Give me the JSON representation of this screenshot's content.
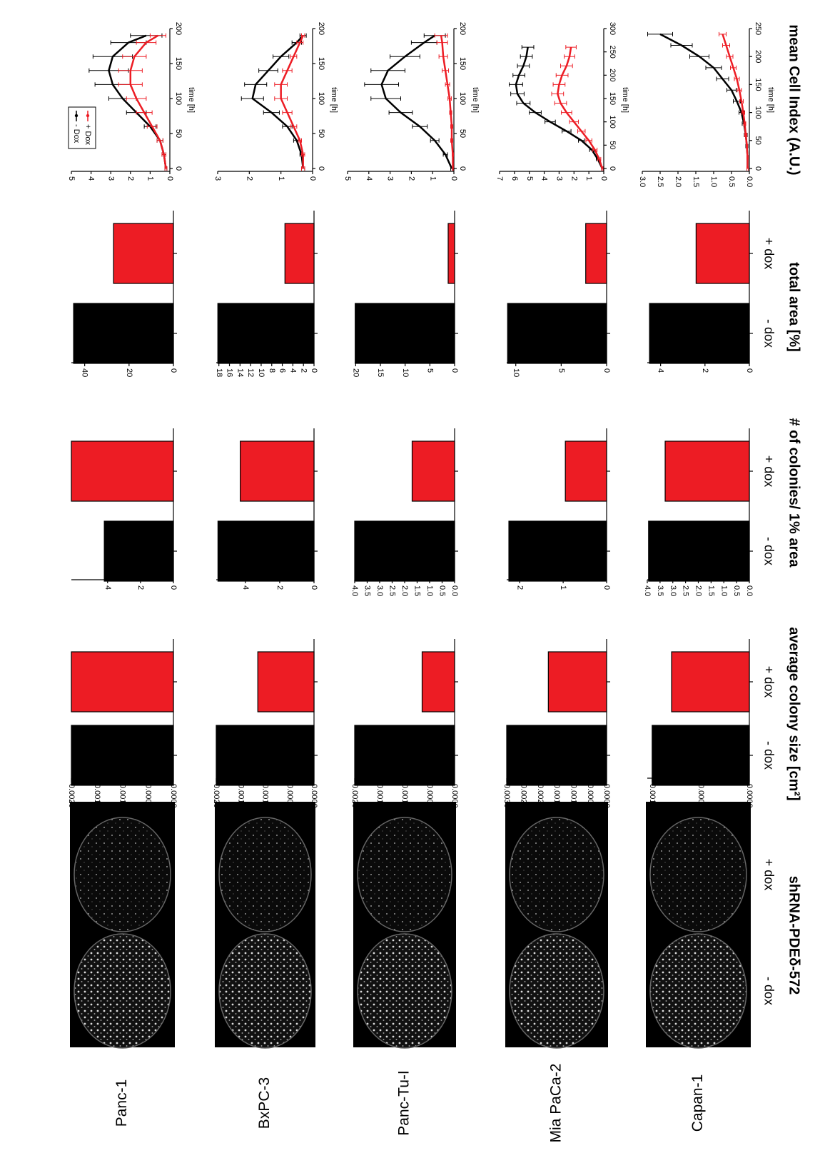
{
  "figure": {
    "images": {
      "title": "shRNA-PDEδ-572",
      "labels": [
        "- dox",
        "+ dox"
      ]
    },
    "columns": [
      {
        "title": "average colony size [cm²]",
        "categories": [
          "- dox",
          "+ dox"
        ]
      },
      {
        "title": "# of colonies/ 1% area",
        "categories": [
          "- dox",
          "+ dox"
        ]
      },
      {
        "title": "total area [%]",
        "categories": [
          "- dox",
          "+ dox"
        ]
      },
      {
        "title": "mean Cell Index (A.U.)"
      }
    ],
    "cell_lines": [
      "Panc-1",
      "BxPC-3",
      "Panc-Tu-I",
      "Mia PaCa-2",
      "Capan-1"
    ]
  },
  "chart_data": [
    {
      "type": "bar",
      "colors": [
        "#000000",
        "#ed1c24"
      ],
      "values": [
        0.002,
        0.002
      ],
      "ylim": [
        0,
        0.002
      ],
      "yticks": [
        {
          "value": 0,
          "label": "0.0000"
        },
        0.0005,
        {
          "value": 0.001,
          "label": "0.0010"
        },
        0.0015,
        {
          "value": 0.002,
          "label": "0.0020"
        }
      ]
    },
    {
      "type": "bar",
      "colors": [
        "#000000",
        "#ed1c24"
      ],
      "values": [
        4.2,
        6.2
      ],
      "ylim": [
        0,
        6.2
      ],
      "yticks": [
        0,
        2,
        4
      ]
    },
    {
      "type": "bar",
      "colors": [
        "#000000",
        "#ed1c24"
      ],
      "values": [
        45,
        27
      ],
      "ylim": [
        0,
        46
      ],
      "yticks": [
        0,
        20,
        40
      ]
    },
    {
      "type": "line",
      "xlabel": "time [h]",
      "xlim": [
        0,
        200
      ],
      "xticks": [
        0,
        50,
        100,
        150,
        200
      ],
      "ylim": [
        0,
        5
      ],
      "yticks": [
        0,
        1,
        2,
        3,
        4,
        5
      ],
      "legend": true,
      "x": [
        0,
        20,
        40,
        60,
        80,
        100,
        120,
        140,
        160,
        180,
        190
      ],
      "series": [
        {
          "name": "- Dox",
          "color": "#000000",
          "values": [
            0.2,
            0.3,
            0.5,
            1.0,
            1.7,
            2.4,
            2.9,
            3.1,
            2.9,
            2.1,
            1.2
          ],
          "errors": [
            0.05,
            0.1,
            0.15,
            0.3,
            0.5,
            0.7,
            0.9,
            1.0,
            1.0,
            0.9,
            0.8
          ]
        },
        {
          "name": "+ Dox",
          "color": "#ed1c24",
          "values": [
            0.2,
            0.3,
            0.5,
            0.9,
            1.3,
            1.7,
            2.0,
            2.0,
            1.8,
            1.2,
            0.6
          ],
          "errors": [
            0.05,
            0.1,
            0.15,
            0.25,
            0.4,
            0.5,
            0.6,
            0.6,
            0.6,
            0.5,
            0.4
          ]
        }
      ]
    },
    {
      "type": "bar",
      "colors": [
        "#000000",
        "#ed1c24"
      ],
      "values": [
        0.002,
        0.00115
      ],
      "ylim": [
        0,
        0.002
      ],
      "yticks": [
        {
          "value": 0,
          "label": "0.0000"
        },
        0.0005,
        {
          "value": 0.001,
          "label": "0.0010"
        },
        0.0015,
        {
          "value": 0.002,
          "label": "0.0020"
        }
      ]
    },
    {
      "type": "bar",
      "colors": [
        "#000000",
        "#ed1c24"
      ],
      "values": [
        5.6,
        4.3
      ],
      "ylim": [
        0,
        5.7
      ],
      "yticks": [
        0,
        2,
        4
      ]
    },
    {
      "type": "bar",
      "colors": [
        "#000000",
        "#ed1c24"
      ],
      "values": [
        18.2,
        5.5
      ],
      "ylim": [
        0,
        18.5
      ],
      "yticks": [
        0,
        2,
        4,
        6,
        8,
        10,
        12,
        14,
        16,
        18
      ]
    },
    {
      "type": "line",
      "xlabel": "time [h]",
      "xlim": [
        0,
        200
      ],
      "xticks": [
        0,
        50,
        100,
        150,
        200
      ],
      "ylim": [
        0,
        3
      ],
      "yticks": [
        0,
        1,
        2,
        3
      ],
      "x": [
        0,
        20,
        40,
        60,
        80,
        100,
        120,
        140,
        160,
        180,
        190
      ],
      "series": [
        {
          "color": "#000000",
          "values": [
            0.3,
            0.35,
            0.5,
            0.8,
            1.3,
            1.9,
            1.8,
            1.4,
            1.0,
            0.5,
            0.3
          ],
          "errors": [
            0.05,
            0.05,
            0.1,
            0.15,
            0.25,
            0.35,
            0.35,
            0.3,
            0.25,
            0.15,
            0.1
          ]
        },
        {
          "color": "#ed1c24",
          "values": [
            0.3,
            0.3,
            0.4,
            0.6,
            0.8,
            1.0,
            1.0,
            0.8,
            0.6,
            0.4,
            0.3
          ],
          "errors": [
            0.05,
            0.05,
            0.05,
            0.1,
            0.15,
            0.2,
            0.2,
            0.15,
            0.1,
            0.1,
            0.05
          ]
        }
      ]
    },
    {
      "type": "bar",
      "colors": [
        "#000000",
        "#ed1c24"
      ],
      "values": [
        0.002,
        0.00065
      ],
      "ylim": [
        0,
        0.002
      ],
      "yticks": [
        {
          "value": 0,
          "label": "0.0000"
        },
        0.0005,
        {
          "value": 0.001,
          "label": "0.0010"
        },
        0.0015,
        {
          "value": 0.002,
          "label": "0.0020"
        }
      ]
    },
    {
      "type": "bar",
      "colors": [
        "#000000",
        "#ed1c24"
      ],
      "values": [
        4.0,
        1.7
      ],
      "ylim": [
        0,
        4
      ],
      "yticks": [
        {
          "value": 0,
          "label": "0.0"
        },
        0.5,
        {
          "value": 1,
          "label": "1.0"
        },
        1.5,
        {
          "value": 2,
          "label": "2.0"
        },
        2.5,
        {
          "value": 3,
          "label": "3.0"
        },
        3.5,
        {
          "value": 4,
          "label": "4.0"
        }
      ]
    },
    {
      "type": "bar",
      "colors": [
        "#000000",
        "#ed1c24"
      ],
      "values": [
        20.1,
        1.3
      ],
      "ylim": [
        0,
        20.2
      ],
      "yticks": [
        0,
        5,
        10,
        15,
        20
      ]
    },
    {
      "type": "line",
      "xlabel": "time [h]",
      "xlim": [
        0,
        200
      ],
      "xticks": [
        0,
        50,
        100,
        150,
        200
      ],
      "ylim": [
        0,
        5
      ],
      "yticks": [
        0,
        1,
        2,
        3,
        4,
        5
      ],
      "x": [
        0,
        20,
        40,
        60,
        80,
        100,
        120,
        140,
        160,
        180,
        190
      ],
      "series": [
        {
          "color": "#000000",
          "values": [
            0.1,
            0.4,
            0.9,
            1.6,
            2.5,
            3.2,
            3.4,
            3.1,
            2.3,
            1.4,
            0.9
          ],
          "errors": [
            0.05,
            0.1,
            0.2,
            0.35,
            0.55,
            0.7,
            0.8,
            0.8,
            0.7,
            0.6,
            0.5
          ]
        },
        {
          "color": "#ed1c24",
          "values": [
            0.05,
            0.05,
            0.1,
            0.1,
            0.15,
            0.2,
            0.3,
            0.4,
            0.5,
            0.55,
            0.6
          ],
          "errors": [
            0.02,
            0.03,
            0.05,
            0.05,
            0.05,
            0.08,
            0.1,
            0.15,
            0.2,
            0.25,
            0.3
          ]
        }
      ]
    },
    {
      "type": "bar",
      "colors": [
        "#000000",
        "#ed1c24"
      ],
      "values": [
        0.003,
        0.00175
      ],
      "ylim": [
        0,
        0.003
      ],
      "yticks": [
        {
          "value": 0,
          "label": "0.0000"
        },
        0.0005,
        {
          "value": 0.001,
          "label": "0.0010"
        },
        0.0015,
        {
          "value": 0.002,
          "label": "0.0020"
        },
        0.0025,
        {
          "value": 0.003,
          "label": "0.0030"
        }
      ]
    },
    {
      "type": "bar",
      "colors": [
        "#000000",
        "#ed1c24"
      ],
      "values": [
        2.25,
        0.95
      ],
      "ylim": [
        0,
        2.3
      ],
      "yticks": [
        0,
        1,
        2
      ]
    },
    {
      "type": "bar",
      "colors": [
        "#000000",
        "#ed1c24"
      ],
      "values": [
        10.9,
        2.3
      ],
      "ylim": [
        0,
        11
      ],
      "yticks": [
        0,
        5,
        10
      ]
    },
    {
      "type": "line",
      "xlabel": "time [h]",
      "xlim": [
        0,
        300
      ],
      "xticks": [
        0,
        50,
        100,
        150,
        200,
        250,
        300
      ],
      "ylim": [
        0,
        7
      ],
      "yticks": [
        0,
        1,
        2,
        3,
        4,
        5,
        6,
        7
      ],
      "x": [
        0,
        20,
        40,
        60,
        80,
        100,
        120,
        140,
        160,
        180,
        200,
        220,
        240,
        260
      ],
      "series": [
        {
          "color": "#000000",
          "values": [
            0.1,
            0.4,
            0.8,
            1.5,
            2.5,
            3.6,
            4.6,
            5.4,
            5.8,
            5.9,
            5.7,
            5.4,
            5.2,
            5.1
          ],
          "errors": [
            0.05,
            0.1,
            0.15,
            0.2,
            0.3,
            0.35,
            0.4,
            0.45,
            0.45,
            0.45,
            0.4,
            0.4,
            0.4,
            0.4
          ]
        },
        {
          "color": "#ed1c24",
          "values": [
            0.1,
            0.3,
            0.6,
            1.0,
            1.5,
            2.0,
            2.5,
            2.9,
            3.1,
            3.0,
            2.8,
            2.5,
            2.3,
            2.2
          ],
          "errors": [
            0.05,
            0.1,
            0.15,
            0.2,
            0.25,
            0.3,
            0.35,
            0.4,
            0.4,
            0.4,
            0.4,
            0.4,
            0.35,
            0.35
          ]
        }
      ]
    },
    {
      "type": "bar",
      "colors": [
        "#000000",
        "#ed1c24"
      ],
      "values": [
        0.001,
        0.0008
      ],
      "ylim": [
        0,
        0.00105
      ],
      "yticks": [
        {
          "value": 0,
          "label": "0.0000"
        },
        0.0005,
        {
          "value": 0.001,
          "label": "0.0010"
        }
      ]
    },
    {
      "type": "bar",
      "colors": [
        "#000000",
        "#ed1c24"
      ],
      "values": [
        3.95,
        3.3
      ],
      "ylim": [
        0,
        4
      ],
      "yticks": [
        {
          "value": 0,
          "label": "0.0"
        },
        0.5,
        {
          "value": 1,
          "label": "1.0"
        },
        1.5,
        {
          "value": 2,
          "label": "2.0"
        },
        2.5,
        {
          "value": 3,
          "label": "3.0"
        },
        3.5,
        {
          "value": 4,
          "label": "4.0"
        }
      ]
    },
    {
      "type": "bar",
      "colors": [
        "#000000",
        "#ed1c24"
      ],
      "values": [
        4.5,
        2.4
      ],
      "ylim": [
        0,
        4.6
      ],
      "yticks": [
        0,
        2,
        4
      ]
    },
    {
      "type": "line",
      "xlabel": "time [h]",
      "xlim": [
        0,
        250
      ],
      "xticks": [
        0,
        50,
        100,
        150,
        200,
        250
      ],
      "ylim": [
        0,
        3
      ],
      "yticks": [
        {
          "value": 0,
          "label": "0.0"
        },
        0.5,
        {
          "value": 1,
          "label": "1.0"
        },
        1.5,
        {
          "value": 2,
          "label": "2.0"
        },
        2.5,
        {
          "value": 3,
          "label": "3.0"
        }
      ],
      "x": [
        0,
        20,
        40,
        60,
        80,
        100,
        120,
        140,
        160,
        180,
        200,
        220,
        240
      ],
      "series": [
        {
          "color": "#000000",
          "values": [
            0.05,
            0.05,
            0.07,
            0.1,
            0.15,
            0.22,
            0.35,
            0.5,
            0.75,
            1.0,
            1.4,
            1.9,
            2.5
          ],
          "errors": [
            0.02,
            0.02,
            0.03,
            0.04,
            0.05,
            0.07,
            0.1,
            0.13,
            0.17,
            0.22,
            0.27,
            0.3,
            0.35
          ]
        },
        {
          "color": "#ed1c24",
          "values": [
            0.05,
            0.05,
            0.07,
            0.1,
            0.13,
            0.17,
            0.22,
            0.28,
            0.35,
            0.45,
            0.55,
            0.65,
            0.75
          ],
          "errors": [
            0.02,
            0.02,
            0.02,
            0.03,
            0.03,
            0.04,
            0.05,
            0.06,
            0.07,
            0.08,
            0.09,
            0.1,
            0.1
          ]
        }
      ]
    }
  ]
}
